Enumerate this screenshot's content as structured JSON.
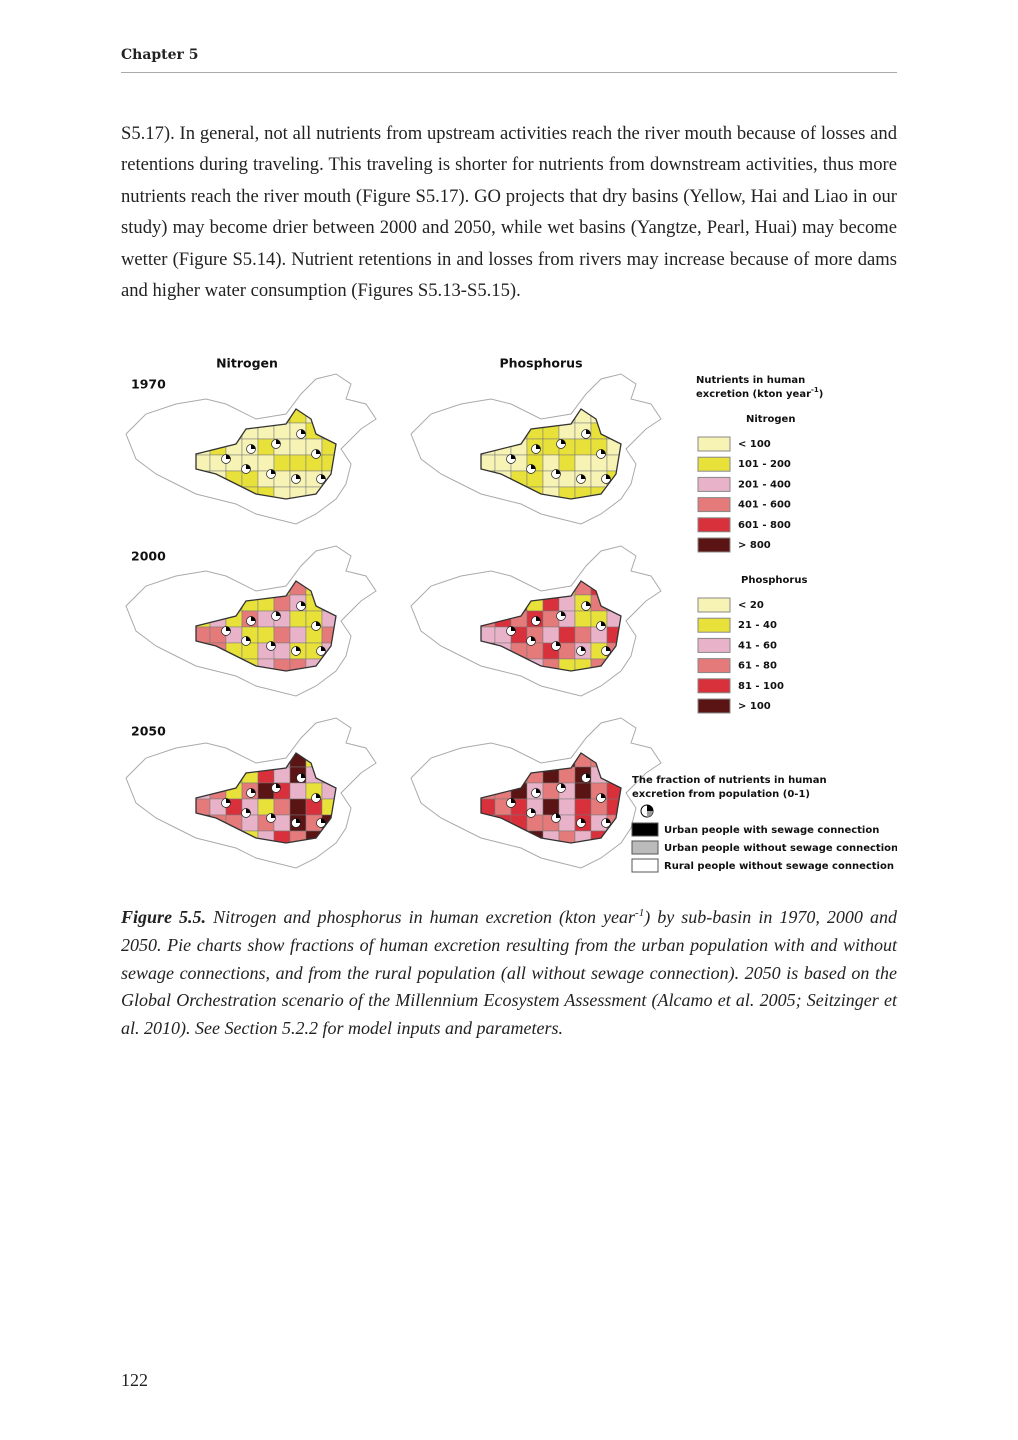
{
  "header": {
    "chapter": "Chapter 5"
  },
  "body": {
    "paragraph": "S5.17). In general, not all nutrients from upstream activities reach the river mouth because of losses and retentions during traveling. This traveling is shorter for nutrients from downstream activities, thus more nutrients reach the river mouth (Figure S5.17). GO projects that dry basins (Yellow, Hai and Liao in our study) may become drier between 2000 and 2050, while wet basins (Yangtze, Pearl, Huai) may become wetter (Figure S5.14). Nutrient retentions in and losses from rivers may increase because of more dams and higher water consumption (Figures S5.13-S5.15)."
  },
  "figure": {
    "column_labels": [
      "Nitrogen",
      "Phosphorus"
    ],
    "row_labels": [
      "1970",
      "2000",
      "2050"
    ],
    "legend": {
      "title_line1": "Nutrients in human",
      "title_line2": "excretion (kton year",
      "title_superscript": "-1",
      "title_close": ")",
      "nitrogen_heading": "Nitrogen",
      "nitrogen_classes": [
        "< 100",
        "101 - 200",
        "201 - 400",
        "401 - 600",
        "601 - 800",
        "> 800"
      ],
      "phosphorus_heading": "Phosphorus",
      "phosphorus_classes": [
        "< 20",
        "21 - 40",
        "41 - 60",
        "61 - 80",
        "81 - 100",
        "> 100"
      ],
      "fraction_title_lines": [
        "The fraction of nutrients in human",
        "excretion from population (0-1)"
      ],
      "fraction_classes": [
        "Urban people with sewage connection",
        "Urban people without sewage connection",
        "Rural people without sewage connection"
      ]
    }
  },
  "caption": {
    "label": "Figure 5.5.",
    "text": "Nitrogen and phosphorus in human excretion (kton year",
    "superscript": "-1",
    "text_end": ") by sub-basin in 1970, 2000 and 2050. Pie charts show fractions of human excretion resulting from the urban population with and without sewage connections, and from the rural population (all without sewage connection). 2050 is based on the Global Orchestration scenario of the Millennium Ecosystem Assessment (Alcamo et al. 2005; Seitzinger et al. 2010). See Section 5.2.2 for model inputs and parameters."
  },
  "page_number": "122"
}
